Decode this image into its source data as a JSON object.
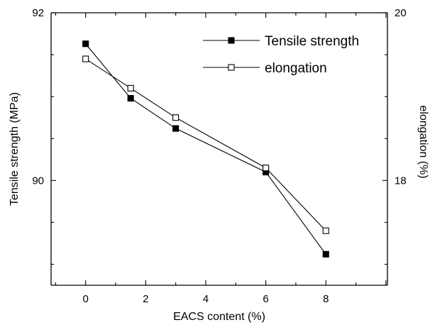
{
  "chart_data": {
    "type": "line",
    "title": "",
    "xlabel": "EACS  content (%)",
    "ylabel_left": "Tensile strength (MPa)",
    "ylabel_right": "elongation (%)",
    "xlim": [
      -1.15,
      10.05
    ],
    "ylim_left": [
      88.75,
      92.0
    ],
    "ylim_right": [
      16.75,
      20.0
    ],
    "x_ticks": [
      "0",
      "2",
      "4",
      "6",
      "8"
    ],
    "y_left_ticks": [
      "90",
      "92"
    ],
    "y_right_ticks": [
      "18",
      "20"
    ],
    "grid": false,
    "legend_position": "top-right",
    "series": [
      {
        "name": "Tensile strength",
        "axis": "left",
        "marker": "filled-square",
        "color": "#000000",
        "x": [
          0,
          1.5,
          3,
          6,
          8
        ],
        "values": [
          91.63,
          90.98,
          90.62,
          90.1,
          89.12
        ]
      },
      {
        "name": "elongation",
        "axis": "right",
        "marker": "open-square",
        "color": "#000000",
        "x": [
          0,
          1.5,
          3,
          6,
          8
        ],
        "values": [
          19.45,
          19.1,
          18.75,
          18.15,
          17.4
        ]
      }
    ]
  }
}
